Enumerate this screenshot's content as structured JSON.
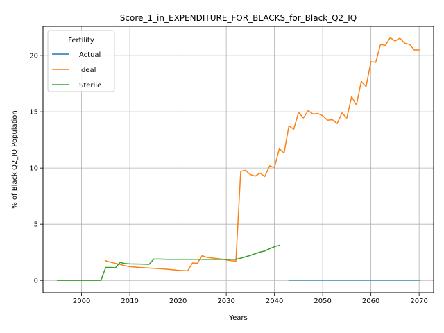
{
  "chart_data": {
    "type": "line",
    "title": "Score_1_in_EXPENDITURE_FOR_BLACKS_for_Black_Q2_IQ",
    "xlabel": "Years",
    "ylabel": "% of Black Q2_IQ Population",
    "xlim": [
      1992,
      2073
    ],
    "ylim": [
      -1.1,
      22.6
    ],
    "xticks": [
      2000,
      2010,
      2020,
      2030,
      2040,
      2050,
      2060,
      2070
    ],
    "yticks": [
      0,
      5,
      10,
      15,
      20
    ],
    "grid": true,
    "legend": {
      "title": "Fertility",
      "placement": "top-left"
    },
    "series": [
      {
        "name": "Actual",
        "color": "#1f77b4",
        "x": [
          2043,
          2050,
          2060,
          2070
        ],
        "y": [
          0.02,
          0.02,
          0.02,
          0.02
        ]
      },
      {
        "name": "Ideal",
        "color": "#ff7f0e",
        "x": [
          2005,
          2006,
          2007,
          2008,
          2009,
          2010,
          2012,
          2014,
          2016,
          2018,
          2020,
          2022,
          2023,
          2024,
          2025,
          2026,
          2027,
          2028,
          2029,
          2030,
          2031,
          2032,
          2033,
          2034,
          2035,
          2036,
          2037,
          2038,
          2039,
          2040,
          2041,
          2042,
          2043,
          2044,
          2045,
          2046,
          2047,
          2048,
          2049,
          2050,
          2051,
          2052,
          2053,
          2054,
          2055,
          2056,
          2057,
          2058,
          2059,
          2060,
          2061,
          2062,
          2063,
          2064,
          2065,
          2066,
          2067,
          2068,
          2069,
          2070
        ],
        "y": [
          1.75,
          1.62,
          1.52,
          1.42,
          1.3,
          1.22,
          1.15,
          1.1,
          1.05,
          0.98,
          0.9,
          0.85,
          1.55,
          1.52,
          2.2,
          2.05,
          2.0,
          1.95,
          1.9,
          1.82,
          1.75,
          1.72,
          9.7,
          9.8,
          9.42,
          9.28,
          9.55,
          9.25,
          10.2,
          10.05,
          11.7,
          11.35,
          13.75,
          13.45,
          14.95,
          14.45,
          15.1,
          14.8,
          14.85,
          14.65,
          14.25,
          14.3,
          13.95,
          14.9,
          14.45,
          16.35,
          15.6,
          17.7,
          17.25,
          19.45,
          19.4,
          21.0,
          20.9,
          21.6,
          21.3,
          21.55,
          21.1,
          21.0,
          20.5,
          20.5
        ]
      },
      {
        "name": "Sterile",
        "color": "#2ca02c",
        "x": [
          1995,
          2000,
          2004,
          2005,
          2006,
          2007,
          2008,
          2009,
          2010,
          2012,
          2014,
          2015,
          2016,
          2018,
          2020,
          2022,
          2024,
          2026,
          2028,
          2030,
          2031,
          2032,
          2033,
          2034,
          2035,
          2036,
          2037,
          2038,
          2039,
          2040,
          2041
        ],
        "y": [
          0.0,
          0.0,
          0.0,
          1.15,
          1.15,
          1.12,
          1.6,
          1.5,
          1.47,
          1.45,
          1.43,
          1.9,
          1.9,
          1.88,
          1.88,
          1.88,
          1.88,
          1.87,
          1.87,
          1.87,
          1.87,
          1.87,
          1.98,
          2.1,
          2.22,
          2.38,
          2.52,
          2.62,
          2.82,
          3.0,
          3.12
        ]
      }
    ]
  }
}
